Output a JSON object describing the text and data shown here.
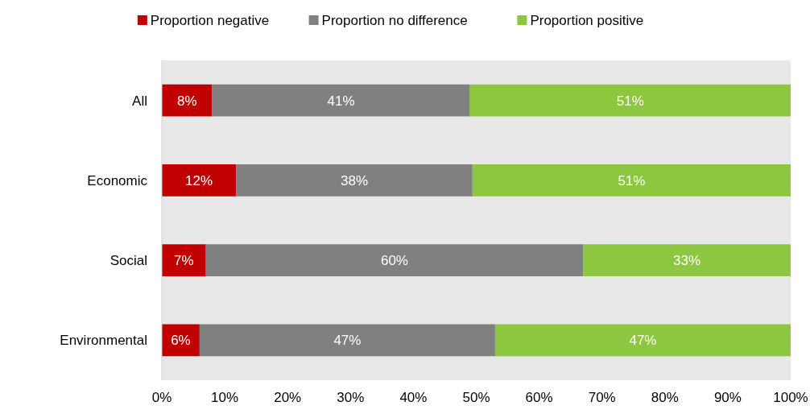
{
  "chart_data": {
    "type": "bar",
    "orientation": "horizontal",
    "stacked": true,
    "legend": "top",
    "grid": false,
    "categories": [
      "All",
      "Economic",
      "Social",
      "Environmental"
    ],
    "series": [
      {
        "name": "Proportion negative",
        "color": "#c00000",
        "values": [
          8,
          11.8,
          7,
          6
        ],
        "value_labels": [
          "8%",
          "12%",
          "7%",
          "6%"
        ]
      },
      {
        "name": "Proportion no difference",
        "color": "#808080",
        "values": [
          41,
          37.6,
          60,
          47
        ],
        "value_labels": [
          "41%",
          "38%",
          "60%",
          "47%"
        ]
      },
      {
        "name": "Proportion positive",
        "color": "#8dc63f",
        "values": [
          51,
          50.6,
          33,
          47
        ],
        "value_labels": [
          "51%",
          "51%",
          "33%",
          "47%"
        ]
      }
    ],
    "xlim": [
      0,
      100
    ],
    "xticks": [
      {
        "value": 0,
        "label": "0%"
      },
      {
        "value": 10,
        "label": "10%"
      },
      {
        "value": 20,
        "label": "20%"
      },
      {
        "value": 30,
        "label": "30%"
      },
      {
        "value": 40,
        "label": "40%"
      },
      {
        "value": 50,
        "label": "50%"
      },
      {
        "value": 60,
        "label": "60%"
      },
      {
        "value": 70,
        "label": "70%"
      },
      {
        "value": 80,
        "label": "80%"
      },
      {
        "value": 90,
        "label": "90%"
      },
      {
        "value": 100,
        "label": "100%"
      }
    ]
  }
}
